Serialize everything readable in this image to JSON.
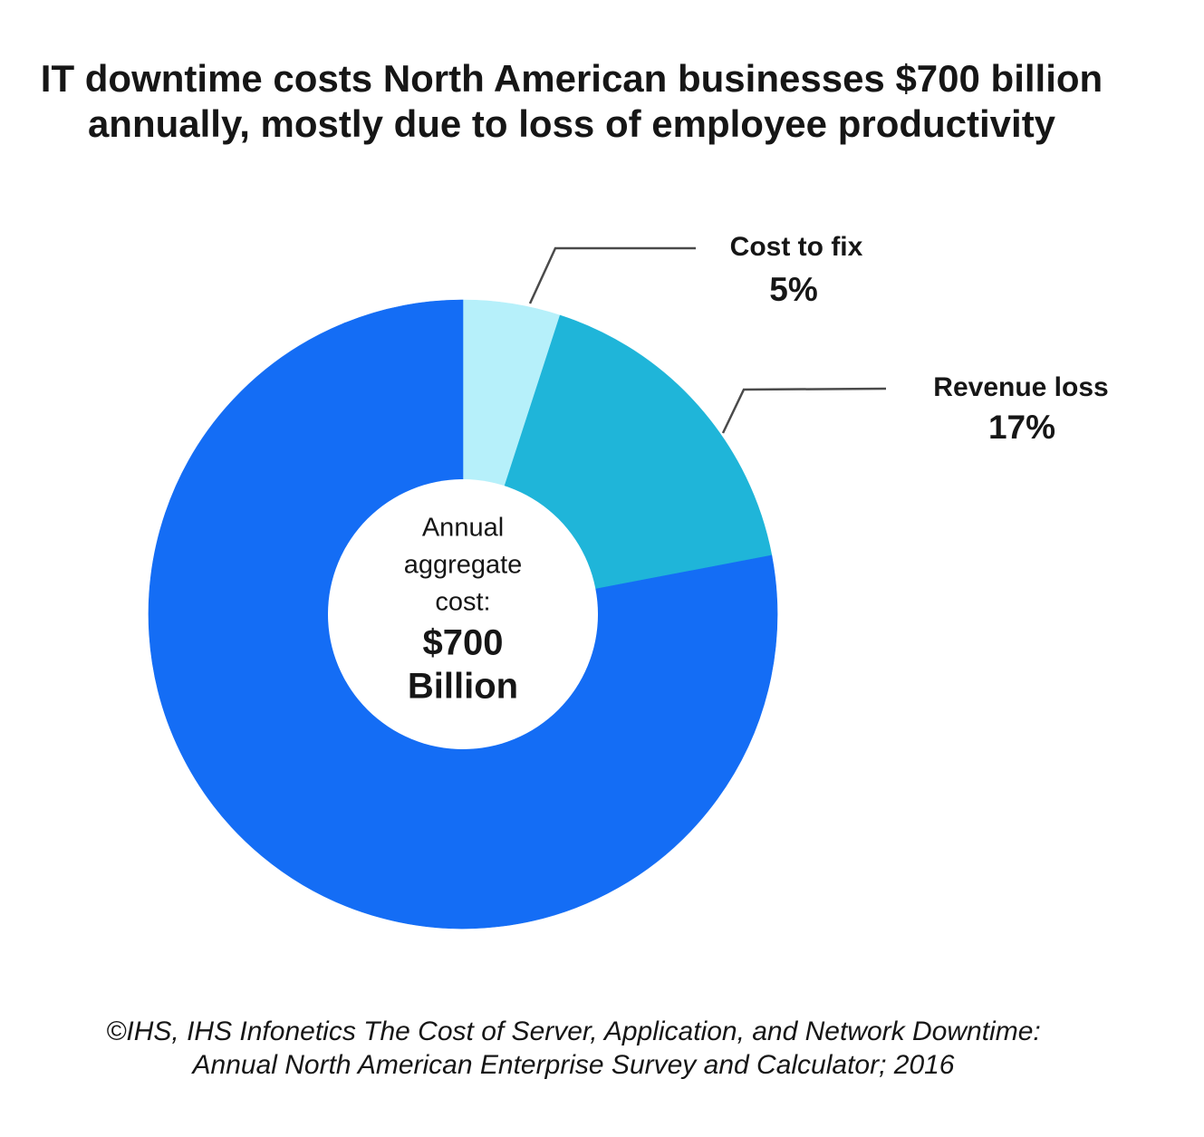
{
  "title": {
    "line1": "IT downtime costs North American businesses $700 billion",
    "line2": "annually, mostly due to loss of employee productivity"
  },
  "chart_data": {
    "type": "pie",
    "variant": "donut",
    "title": "IT downtime costs North American businesses $700 billion annually, mostly due to loss of employee productivity",
    "start_angle_deg": 0,
    "direction": "clockwise",
    "legend_position": "callout-labels-right",
    "slices": [
      {
        "label": "Cost to fix",
        "percent_label": "5%",
        "value": 5,
        "color": "#b6f0fa"
      },
      {
        "label": "Revenue loss",
        "percent_label": "17%",
        "value": 17,
        "color": "#1fb5d9"
      },
      {
        "label": "",
        "percent_label": "",
        "value": 78,
        "color": "#146df5"
      }
    ],
    "center_label": {
      "caption_lines": [
        "Annual",
        "aggregate",
        "cost:"
      ],
      "value_lines": [
        "$700",
        "Billion"
      ]
    }
  },
  "footer": {
    "line1": "©IHS, IHS Infonetics The Cost of Server, Application, and Network Downtime:",
    "line2": "Annual North American Enterprise Survey and Calculator; 2016"
  },
  "colors": {
    "leader_line": "#4a4a4a",
    "text": "#161616",
    "background": "#ffffff"
  }
}
